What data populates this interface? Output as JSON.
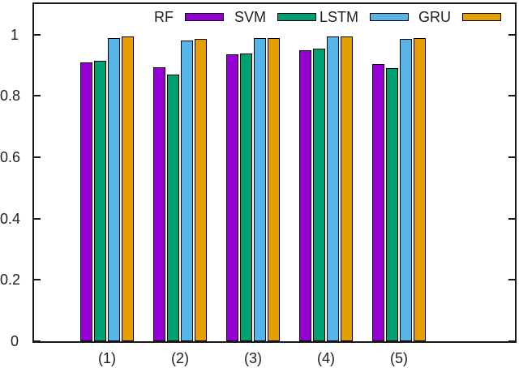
{
  "chart_data": {
    "type": "bar",
    "title": "",
    "xlabel": "",
    "ylabel": "",
    "categories": [
      "(1)",
      "(2)",
      "(3)",
      "(4)",
      "(5)"
    ],
    "series": [
      {
        "name": "RF",
        "color": "#9400d3",
        "values": [
          0.91,
          0.895,
          0.935,
          0.95,
          0.905
        ]
      },
      {
        "name": "SVM",
        "color": "#009e73",
        "values": [
          0.915,
          0.87,
          0.94,
          0.955,
          0.89
        ]
      },
      {
        "name": "LSTM",
        "color": "#56b4e9",
        "values": [
          0.99,
          0.98,
          0.99,
          0.995,
          0.985
        ]
      },
      {
        "name": "GRU",
        "color": "#e69f00",
        "values": [
          0.995,
          0.985,
          0.99,
          0.995,
          0.99
        ]
      }
    ],
    "ylim": [
      0,
      1.1
    ],
    "yticks": [
      0,
      0.2,
      0.4,
      0.6,
      0.8,
      1
    ],
    "ytick_labels": [
      "0",
      "0.2",
      "0.4",
      "0.6",
      "0.8",
      "1"
    ],
    "legend_position": "top-inside",
    "grid": false,
    "bar_border_color": "#000000",
    "axis_color": "#1a1a1a"
  }
}
